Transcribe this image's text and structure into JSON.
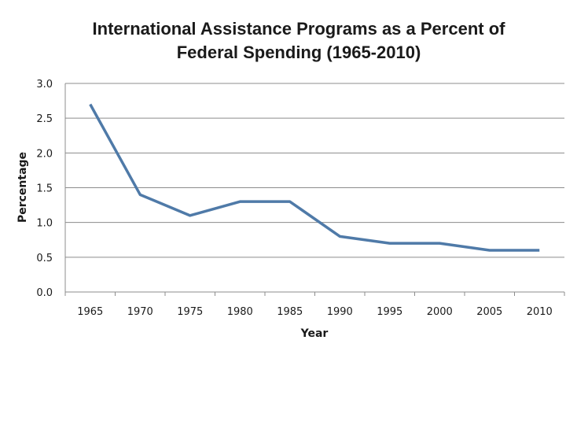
{
  "chart_data": {
    "type": "line",
    "title_lines": [
      "International Assistance Programs as a Percent of",
      "Federal Spending (1965-2010)"
    ],
    "xlabel": "Year",
    "ylabel": "Percentage",
    "categories": [
      "1965",
      "1970",
      "1975",
      "1980",
      "1985",
      "1990",
      "1995",
      "2000",
      "2005",
      "2010"
    ],
    "series": [
      {
        "name": "International Assistance Programs",
        "values": [
          2.7,
          1.4,
          1.1,
          1.3,
          1.3,
          0.8,
          0.7,
          0.7,
          0.6,
          0.6
        ],
        "color": "#4f7aa8"
      }
    ],
    "ylim": [
      0,
      3
    ],
    "yticks": [
      "0.0",
      "0.5",
      "1.0",
      "1.5",
      "2.0",
      "2.5",
      "3.0"
    ],
    "grid": true,
    "legend": "none"
  }
}
